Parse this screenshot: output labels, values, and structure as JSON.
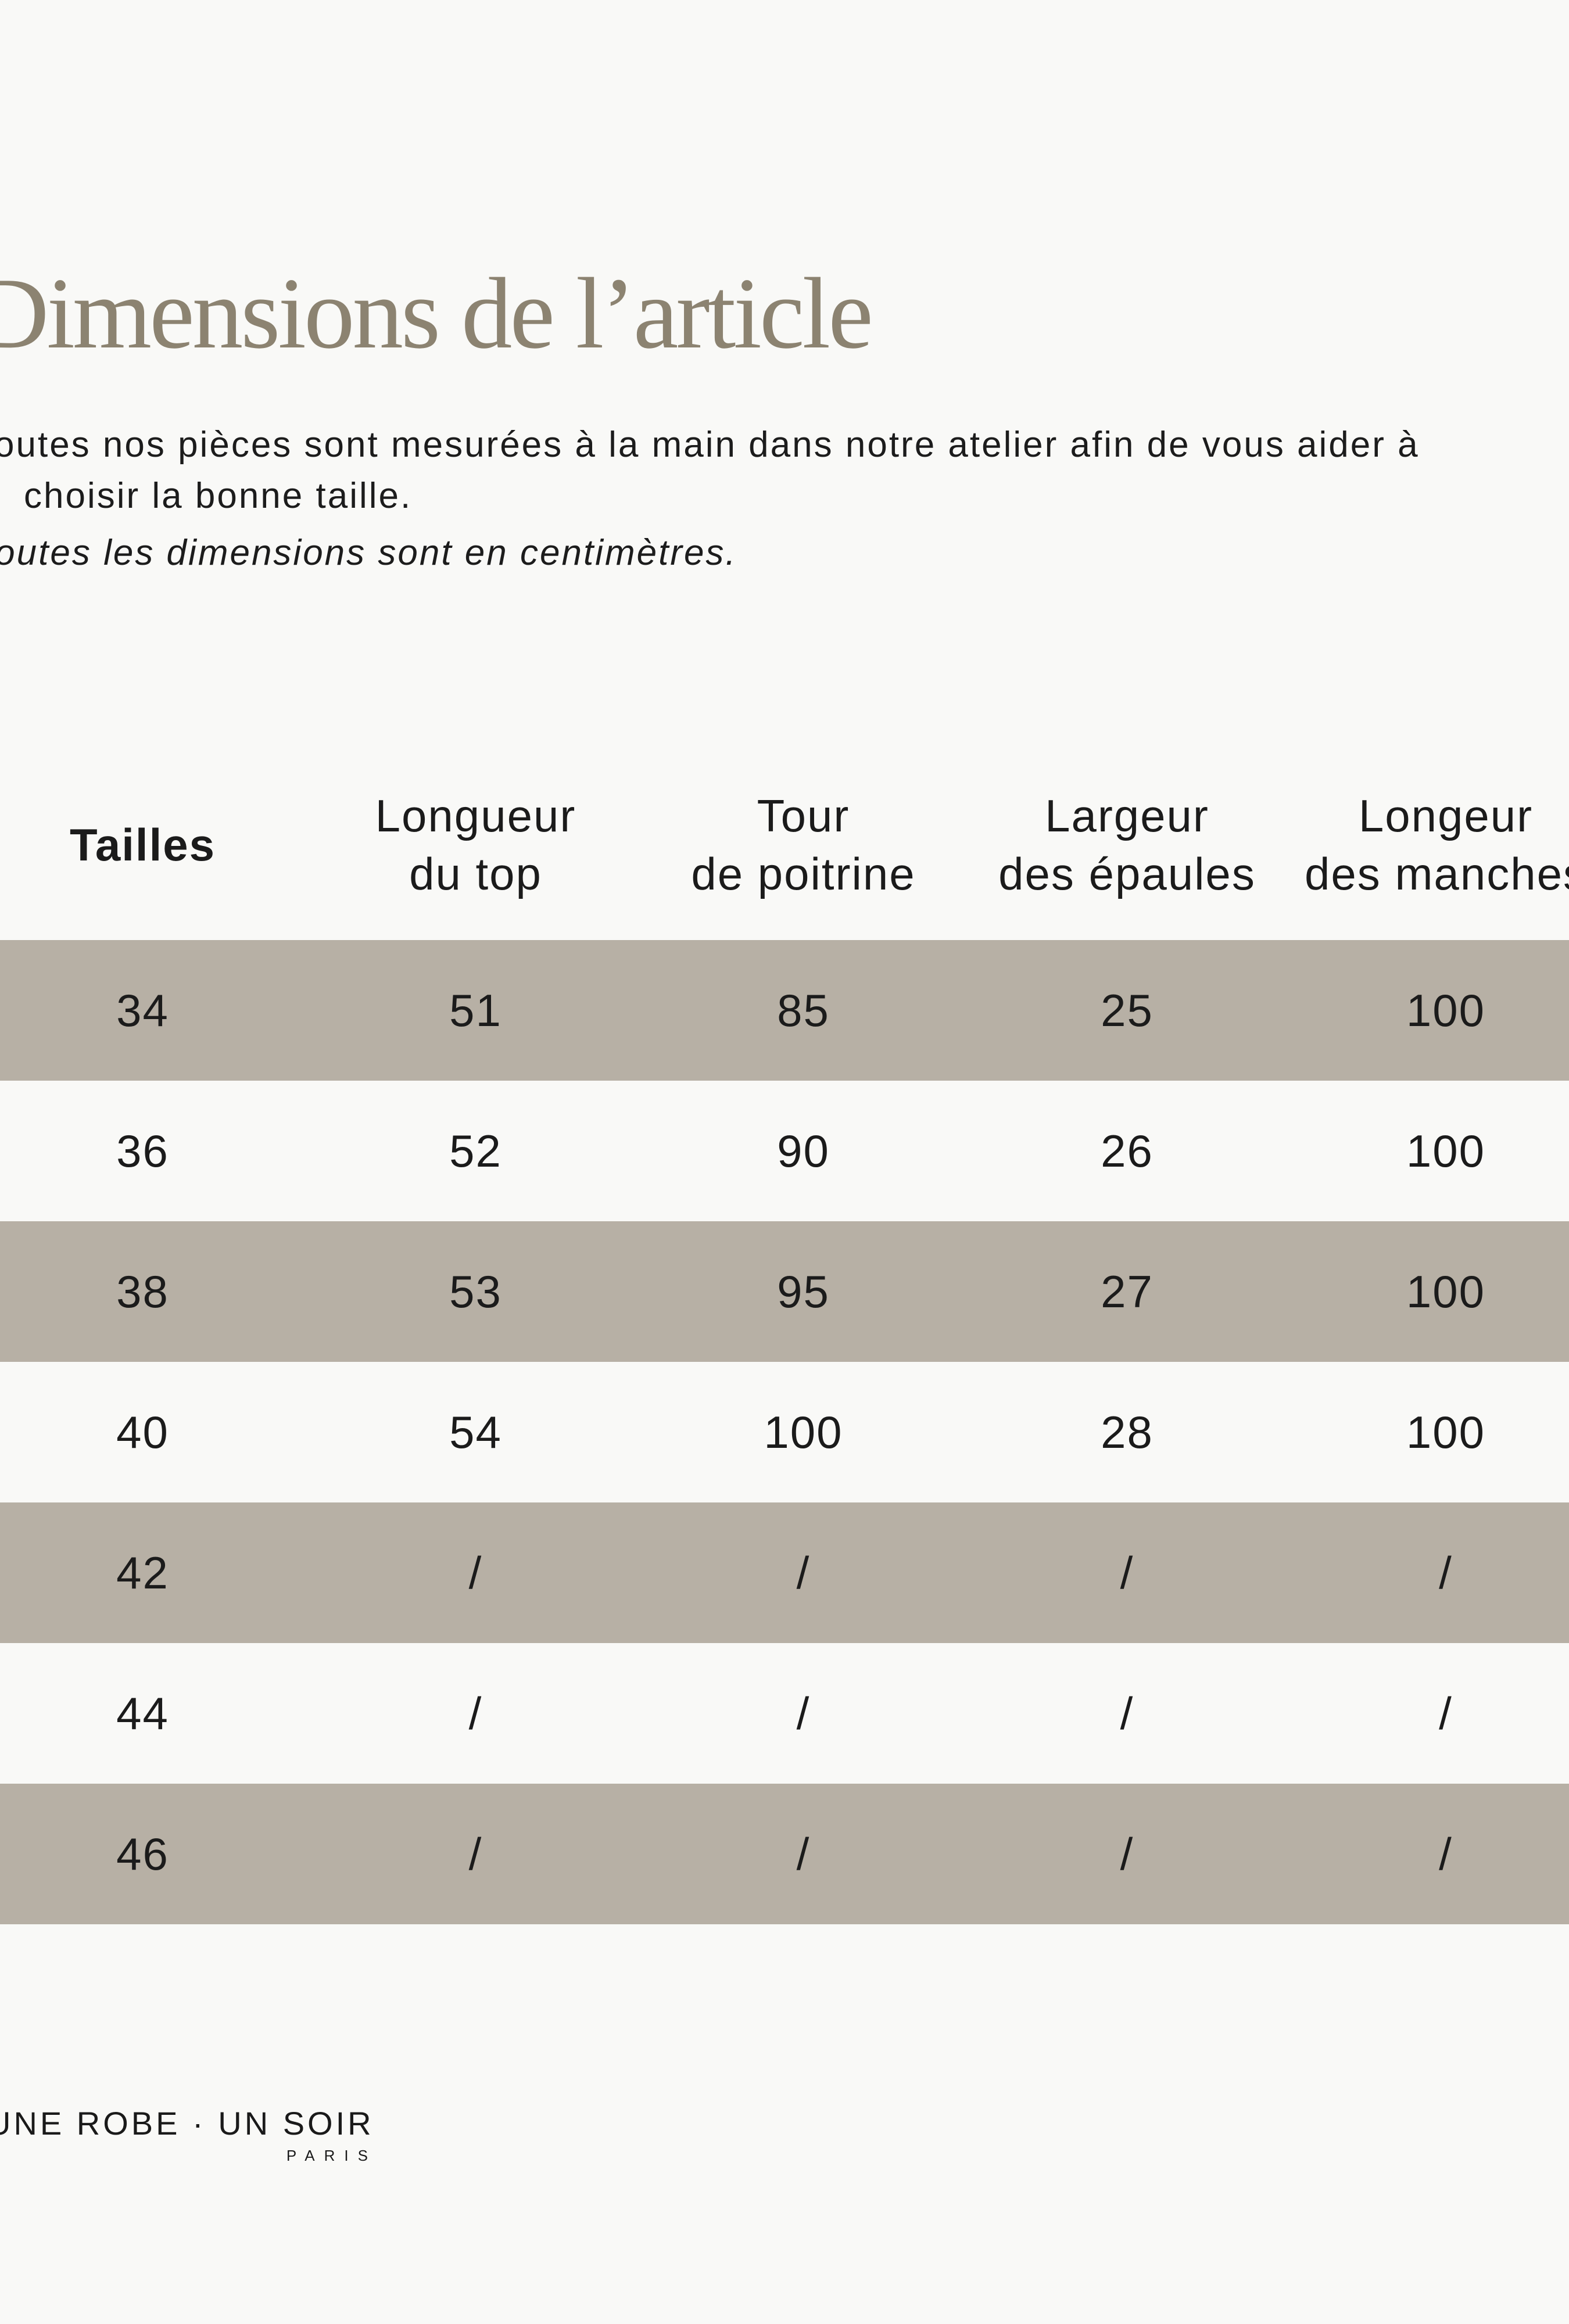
{
  "colors": {
    "background": "#f9f9f7",
    "title": "#8c8371",
    "text": "#1c1c1c",
    "row_stripe": "#b7b0a5"
  },
  "title": "Dimensions de l’article",
  "intro": {
    "lines": [
      "Toutes nos pièces sont mesurées à la main dans notre atelier afin de vous aider à",
      "choisir la bonne taille."
    ],
    "note": "Toutes les dimensions sont en centimètres."
  },
  "table": {
    "columns": [
      {
        "lines": [
          "Tailles"
        ]
      },
      {
        "lines": [
          "Longueur",
          "du top"
        ]
      },
      {
        "lines": [
          "Tour",
          "de poitrine"
        ]
      },
      {
        "lines": [
          "Largeur",
          "des épaules"
        ]
      },
      {
        "lines": [
          "Longeur",
          "des manches"
        ]
      }
    ],
    "rows": [
      {
        "size": "34",
        "values": [
          "51",
          "85",
          "25",
          "100"
        ]
      },
      {
        "size": "36",
        "values": [
          "52",
          "90",
          "26",
          "100"
        ]
      },
      {
        "size": "38",
        "values": [
          "53",
          "95",
          "27",
          "100"
        ]
      },
      {
        "size": "40",
        "values": [
          "54",
          "100",
          "28",
          "100"
        ]
      },
      {
        "size": "42",
        "values": [
          "/",
          "/",
          "/",
          "/"
        ]
      },
      {
        "size": "44",
        "values": [
          "/",
          "/",
          "/",
          "/"
        ]
      },
      {
        "size": "46",
        "values": [
          "/",
          "/",
          "/",
          "/"
        ]
      }
    ],
    "units": "cm"
  },
  "logo": {
    "line1": "UNE ROBE · UN SOIR",
    "line2": "PARIS"
  }
}
